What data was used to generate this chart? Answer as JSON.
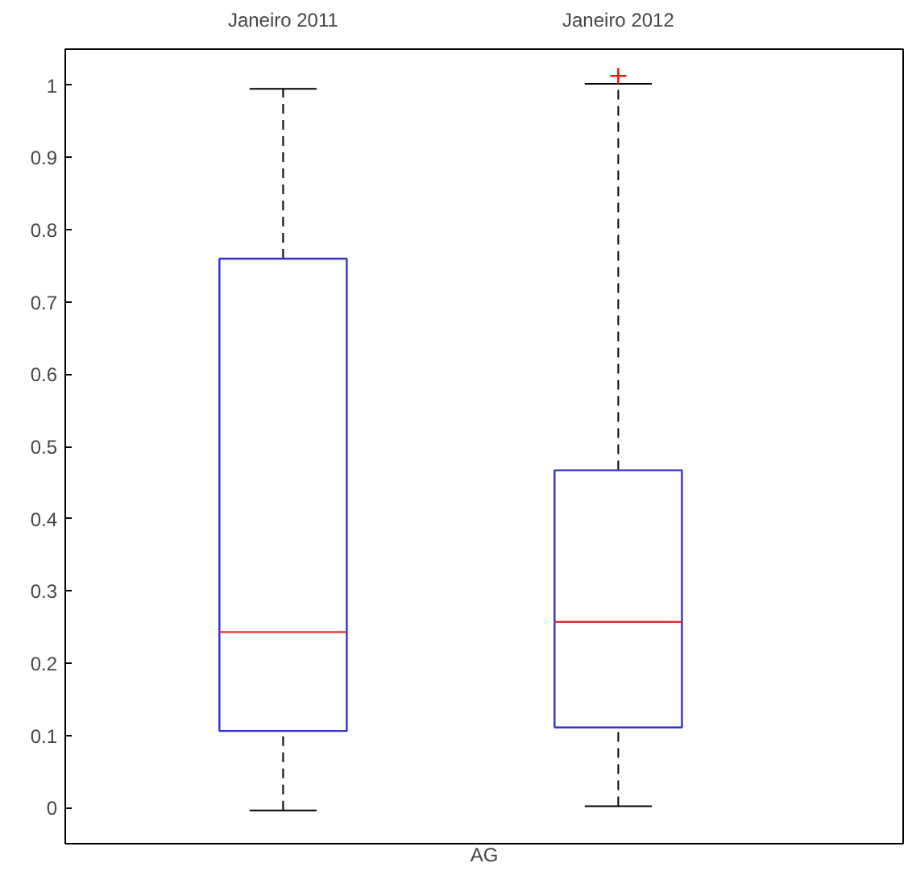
{
  "chart_data": {
    "type": "box",
    "xlabel": "AG",
    "categories": [
      "Janeiro 2011",
      "Janeiro 2012"
    ],
    "boxes": [
      {
        "low": -0.004,
        "q1": 0.106,
        "median": 0.243,
        "q3": 0.76,
        "high": 0.995
      },
      {
        "low": 0.002,
        "q1": 0.111,
        "median": 0.257,
        "q3": 0.467,
        "high": 1.002,
        "outliers": [
          1.013
        ]
      }
    ],
    "ylim": [
      -0.05,
      1.05
    ],
    "yticks": [
      0,
      0.1,
      0.2,
      0.3,
      0.4,
      0.5,
      0.6,
      0.7,
      0.8,
      0.9,
      1
    ],
    "grid": false
  }
}
